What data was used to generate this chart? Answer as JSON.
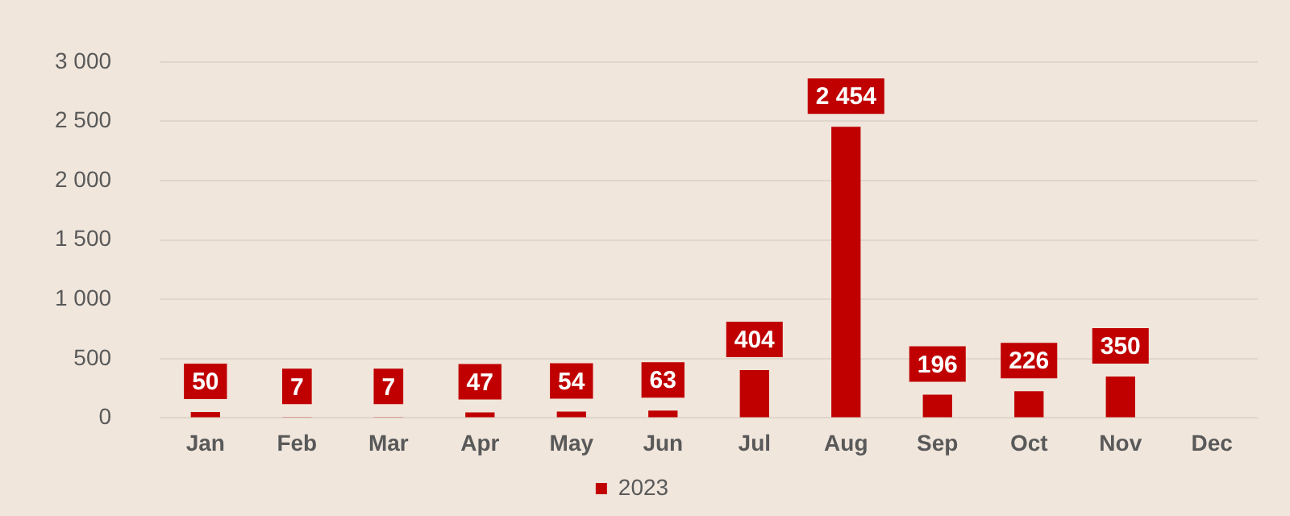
{
  "chart_data": {
    "type": "bar",
    "categories": [
      "Jan",
      "Feb",
      "Mar",
      "Apr",
      "May",
      "Jun",
      "Jul",
      "Aug",
      "Sep",
      "Oct",
      "Nov",
      "Dec"
    ],
    "series": [
      {
        "name": "2023",
        "color": "#c00000",
        "values": [
          50,
          7,
          7,
          47,
          54,
          63,
          404,
          2454,
          196,
          226,
          350,
          null
        ],
        "value_labels": [
          "50",
          "7",
          "7",
          "47",
          "54",
          "63",
          "404",
          "2 454",
          "196",
          "226",
          "350",
          null
        ]
      }
    ],
    "ylim": [
      0,
      3000
    ],
    "yticks": [
      0,
      500,
      {
        "value": 1000,
        "label": "1 000"
      },
      {
        "value": 1500,
        "label": "1 500"
      },
      {
        "value": 2000,
        "label": "2 000"
      },
      {
        "value": 2500,
        "label": "2 500"
      },
      {
        "value": 3000,
        "label": "3 000"
      }
    ],
    "grid": "y",
    "legend": "bottom"
  }
}
